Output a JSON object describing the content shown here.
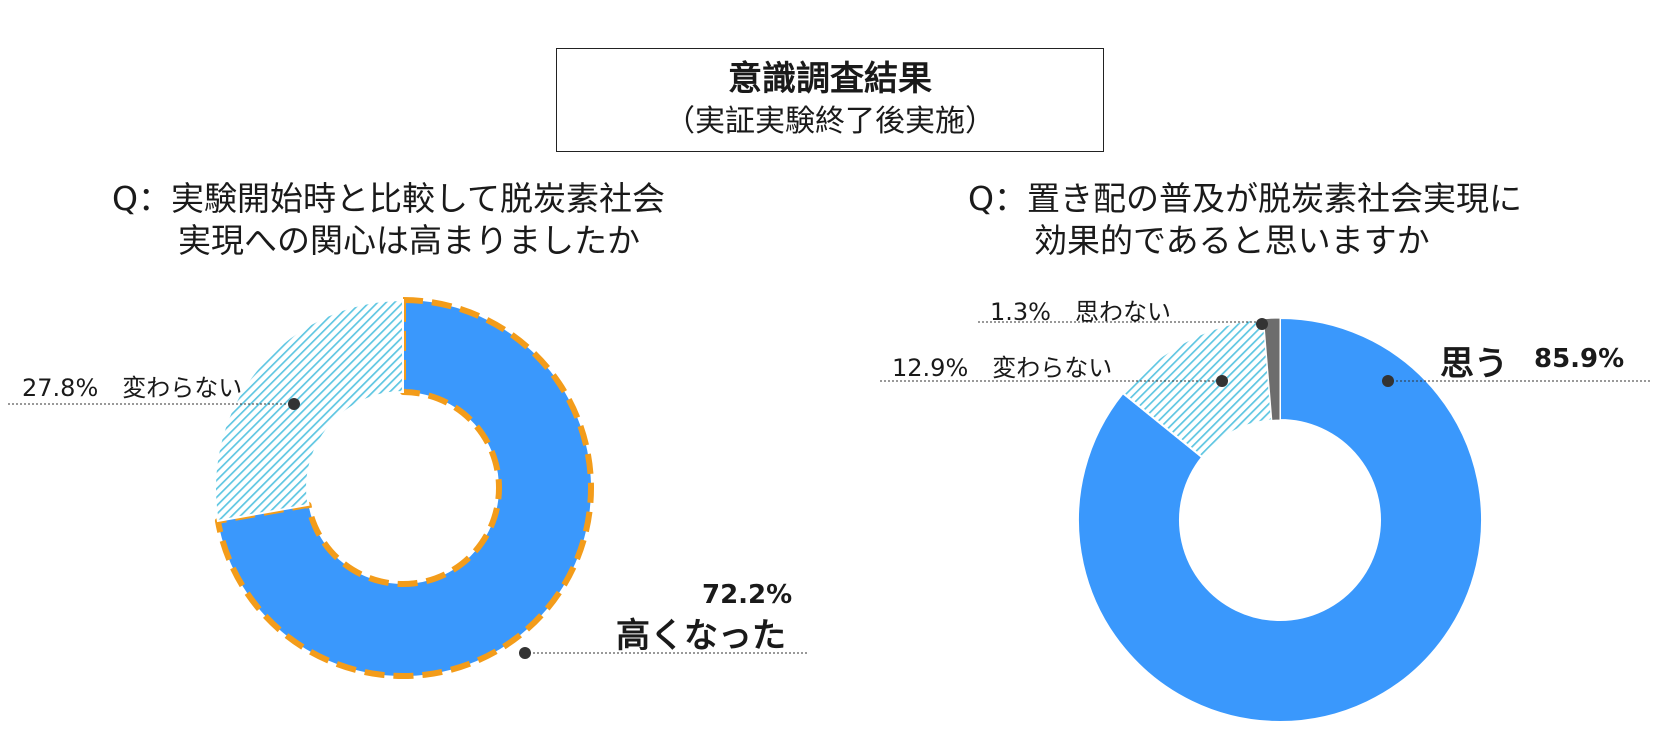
{
  "header": {
    "title": "意識調査結果",
    "subtitle": "（実証実験終了後実施）"
  },
  "colors": {
    "blue": "#3a98fc",
    "hatch": "#5ec6e2",
    "orange": "#f39c1a",
    "gray": "#6d6d6d"
  },
  "chart_data": [
    {
      "type": "pie",
      "question_line1": "Q：実験開始時と比較して脱炭素社会",
      "question_line2": "実現への関心は高まりましたか",
      "series": [
        {
          "name": "高くなった",
          "value": 72.2,
          "label": "72.2%"
        },
        {
          "name": "変わらない",
          "value": 27.8,
          "label": "27.8%"
        }
      ]
    },
    {
      "type": "pie",
      "question_line1": "Q：置き配の普及が脱炭素社会実現に",
      "question_line2": "効果的であると思いますか",
      "series": [
        {
          "name": "思う",
          "value": 85.9,
          "label": "85.9%"
        },
        {
          "name": "変わらない",
          "value": 12.9,
          "label": "12.9%"
        },
        {
          "name": "思わない",
          "value": 1.3,
          "label": "1.3%"
        }
      ]
    }
  ]
}
